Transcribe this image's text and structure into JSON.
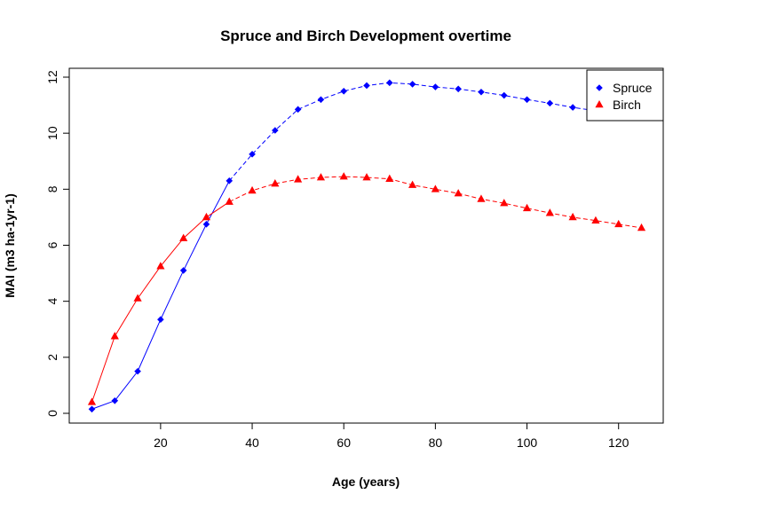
{
  "chart_data": {
    "type": "line",
    "title": "Spruce and Birch Development overtime",
    "xlabel": "Age (years)",
    "ylabel": "MAI (m3 ha-1yr-1)",
    "xlim": [
      5,
      125
    ],
    "ylim": [
      0,
      12
    ],
    "x_ticks": [
      20,
      40,
      60,
      80,
      100,
      120
    ],
    "y_ticks": [
      0,
      2,
      4,
      6,
      8,
      10,
      12
    ],
    "grid": false,
    "legend_position": "top-right",
    "x": [
      5,
      10,
      15,
      20,
      25,
      30,
      35,
      40,
      45,
      50,
      55,
      60,
      65,
      70,
      75,
      80,
      85,
      90,
      95,
      100,
      105,
      110,
      115,
      120,
      125
    ],
    "series": [
      {
        "name": "Spruce",
        "color": "#0000ff",
        "marker": "diamond",
        "values": [
          0.15,
          0.45,
          1.5,
          3.35,
          5.1,
          6.75,
          8.3,
          9.25,
          10.1,
          10.85,
          11.2,
          11.5,
          11.7,
          11.8,
          11.75,
          11.65,
          11.58,
          11.47,
          11.35,
          11.2,
          11.07,
          10.92,
          10.8,
          10.7,
          10.62
        ]
      },
      {
        "name": "Birch",
        "color": "#ff0000",
        "marker": "triangle",
        "values": [
          0.4,
          2.75,
          4.1,
          5.25,
          6.25,
          7.0,
          7.55,
          7.95,
          8.2,
          8.35,
          8.42,
          8.45,
          8.42,
          8.37,
          8.15,
          8.0,
          7.85,
          7.65,
          7.5,
          7.32,
          7.15,
          7.0,
          6.88,
          6.75,
          6.62
        ]
      }
    ]
  }
}
